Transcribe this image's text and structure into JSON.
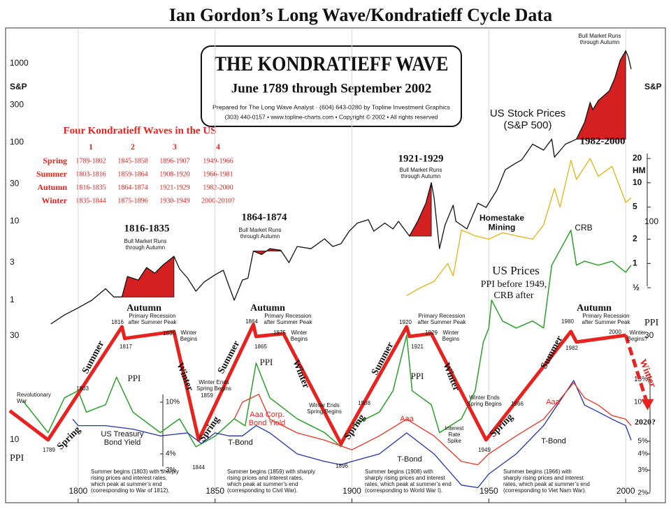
{
  "title": "Ian Gordon’s Long Wave/Kondratieff Cycle Data",
  "box": {
    "title": "THE KONDRATIEFF WAVE",
    "subtitle": "June 1789 through September 2002",
    "credit1": "Prepared for The Long Wave Analyst  ·  (604) 643-0280 by Topline Investment Graphics",
    "credit2": "(303) 440-0157 • www.topline-charts.com • Copyright © 2002 • All rights reserved"
  },
  "table": {
    "title": "Four Kondratieff Waves in the US",
    "columns": [
      1,
      2,
      3,
      4
    ],
    "rows": [
      {
        "season": "Spring",
        "cells": [
          "1789-1802",
          "1845-1858",
          "1896-1907",
          "1949-1966"
        ]
      },
      {
        "season": "Summer",
        "cells": [
          "1803-1816",
          "1859-1864",
          "1908-1920",
          "1966-1981"
        ]
      },
      {
        "season": "Autumn",
        "cells": [
          "1816-1835",
          "1864-1874",
          "1921-1929",
          "1982-2000"
        ]
      },
      {
        "season": "Winter",
        "cells": [
          "1835-1844",
          "1875-1896",
          "1930-1949",
          "2000-2010?"
        ]
      }
    ]
  },
  "chart_data": [
    {
      "type": "line",
      "log": true,
      "ylabel": "S&P",
      "xlim": [
        1774,
        2014
      ],
      "xticks": [
        1800,
        1850,
        1900,
        1950,
        2000
      ],
      "grid": true,
      "ylim": [
        0.5,
        2000
      ],
      "yticks": [
        1,
        3,
        10,
        30,
        100,
        300,
        1000
      ],
      "highlight_spans": [
        [
          1816,
          1835
        ],
        [
          1864,
          1874
        ],
        [
          1921,
          1929
        ],
        [
          1982,
          2000
        ]
      ],
      "highlight_color": "#d42020",
      "series": [
        {
          "color": "#111111",
          "x": [
            1790,
            1795,
            1800,
            1805,
            1810,
            1813,
            1816,
            1818,
            1822,
            1825,
            1828,
            1831,
            1835,
            1837,
            1840,
            1843,
            1846,
            1850,
            1853,
            1857,
            1860,
            1862,
            1864,
            1867,
            1870,
            1874,
            1877,
            1880,
            1885,
            1890,
            1893,
            1896,
            1899,
            1902,
            1906,
            1908,
            1912,
            1915,
            1917,
            1921,
            1924,
            1927,
            1929,
            1930,
            1932,
            1934,
            1937,
            1938,
            1942,
            1946,
            1949,
            1953,
            1956,
            1960,
            1962,
            1966,
            1970,
            1973,
            1974,
            1978,
            1982,
            1985,
            1987,
            1988,
            1990,
            1994,
            1996,
            1998,
            2000,
            2001,
            2002
          ],
          "values": [
            0.5,
            0.65,
            0.8,
            1.0,
            1.4,
            1.1,
            1.1,
            2.0,
            1.8,
            2.6,
            2.2,
            2.8,
            3.6,
            2.5,
            1.9,
            1.3,
            1.7,
            2.1,
            2.4,
            1.0,
            1.8,
            1.9,
            4.2,
            3.8,
            4.5,
            4.3,
            3.0,
            4.8,
            4.5,
            6.0,
            4.8,
            5.2,
            7.5,
            9.5,
            10.5,
            7.5,
            9.5,
            8,
            10,
            6.5,
            10,
            17,
            31,
            20,
            4.5,
            9,
            16,
            10,
            8,
            17,
            15,
            25,
            45,
            55,
            60,
            95,
            80,
            110,
            65,
            95,
            110,
            180,
            320,
            260,
            340,
            450,
            650,
            1100,
            1450,
            1200,
            850
          ]
        }
      ]
    },
    {
      "type": "line",
      "log": true,
      "y2label": "HM",
      "ylim": [
        0.35,
        23
      ],
      "y2ticks": [
        20,
        10,
        5,
        2,
        1,
        {
          "value": 0.5,
          "label": "½"
        }
      ],
      "series": [
        {
          "color": "#e3b410",
          "x": [
            1920,
            1925,
            1930,
            1935,
            1937,
            1940,
            1945,
            1950,
            1955,
            1960,
            1966,
            1970,
            1974,
            1976,
            1980,
            1982,
            1987,
            1990,
            1995,
            2000,
            2002
          ],
          "values": [
            0.4,
            0.5,
            0.6,
            1.0,
            0.7,
            2.6,
            2.2,
            2.0,
            2.4,
            2.2,
            2.0,
            3.0,
            8.5,
            5.0,
            19,
            11,
            20,
            12,
            16,
            5.7,
            6.5
          ]
        }
      ]
    },
    {
      "type": "line",
      "log": true,
      "ylabel": "PPI",
      "y2label": "PPI",
      "ylim": [
        5.15,
        114
      ],
      "yticks": [
        10,
        30
      ],
      "y2ticks": [
        30,
        100
      ],
      "series": [
        {
          "color": "#2aa02a",
          "width": 1.5,
          "x": [
            1780,
            1789,
            1795,
            1800,
            1803,
            1810,
            1814,
            1820,
            1830,
            1837,
            1843,
            1850,
            1857,
            1861,
            1865,
            1870,
            1880,
            1890,
            1896,
            1900,
            1910,
            1915,
            1920,
            1922,
            1929,
            1932,
            1940,
            1945,
            1948,
            1950,
            1951,
            1955,
            1960,
            1966,
            1970,
            1973,
            1980,
            1982,
            1985,
            1990,
            1995,
            2000,
            2002
          ],
          "values": [
            15,
            10.8,
            15.6,
            16.8,
            13.4,
            14.5,
            19.4,
            13.4,
            10.8,
            12.5,
            9.3,
            10.4,
            12.5,
            11.6,
            22.5,
            15.6,
            12.5,
            10.8,
            9.3,
            11.6,
            13.4,
            16.8,
            30.2,
            16.8,
            14.5,
            10.8,
            12.5,
            16.8,
            28.1,
            32.6,
            43.8,
            35.1,
            32.6,
            35.1,
            32.6,
            63.3,
            91.6,
            63.3,
            66,
            63.3,
            66,
            58.7,
            63.3
          ]
        },
        {
          "color": "#e8231f",
          "width": 5,
          "x": [
            1775,
            1789,
            1816,
            1817,
            1835,
            1844,
            1864,
            1865,
            1875,
            1896,
            1920,
            1921,
            1929,
            1949,
            1980,
            1982,
            2000
          ],
          "values": [
            13.6,
            10,
            33,
            29.2,
            31.4,
            10,
            33.8,
            29.8,
            30.7,
            9.6,
            33,
            29.8,
            30.7,
            10,
            31.4,
            28.1,
            30.2
          ]
        },
        {
          "color": "#e8231f",
          "width": 5,
          "dash": true,
          "x": [
            2000,
            2008
          ],
          "values": [
            30.2,
            14.5
          ]
        }
      ]
    },
    {
      "type": "line",
      "log": true,
      "ylim": [
        1.8,
        18
      ],
      "yticks": [
        {
          "value": 10,
          "label": "10%"
        },
        {
          "value": 4,
          "label": "4%"
        },
        {
          "value": 3,
          "label": "3%"
        }
      ],
      "y2ticks": [
        {
          "value": 15,
          "label": "15%"
        },
        {
          "value": 10,
          "label": "10%"
        },
        {
          "value": 5,
          "label": "5%"
        },
        {
          "value": 4,
          "label": "4%"
        },
        {
          "value": 3,
          "label": "3%"
        },
        {
          "value": 2,
          "label": "2%"
        }
      ],
      "series": [
        {
          "color": "#2233aa",
          "x": [
            1798,
            1800,
            1810,
            1820,
            1830,
            1840,
            1845,
            1850,
            1855,
            1860,
            1865,
            1870,
            1880,
            1890,
            1896,
            1900,
            1910,
            1920,
            1930,
            1940,
            1946,
            1950,
            1960,
            1970,
            1981,
            1985,
            1990,
            1995,
            2000,
            2002
          ],
          "values": [
            7.4,
            6.6,
            6.6,
            6.2,
            5.5,
            5.8,
            4.8,
            5.8,
            5.5,
            5.5,
            6.6,
            5.8,
            4.0,
            3.5,
            3.3,
            3.5,
            4.0,
            5.8,
            4.0,
            2.3,
            2.2,
            2.8,
            4.0,
            6.6,
            14.7,
            9.5,
            8.4,
            7.4,
            6.6,
            5.1
          ]
        },
        {
          "color": "#ee3322",
          "x": [
            1857,
            1860,
            1866,
            1870,
            1880,
            1890,
            1900,
            1910,
            1920,
            1930,
            1940,
            1946,
            1950,
            1960,
            1970,
            1981,
            1985,
            1990,
            1995,
            2000,
            2002
          ],
          "values": [
            7.4,
            10,
            11.5,
            7.4,
            5.8,
            5.1,
            4.3,
            5.5,
            7.4,
            5.5,
            3.5,
            3.3,
            4.0,
            5.5,
            7.4,
            14.1,
            10.8,
            9.5,
            7.9,
            7.4,
            6.6
          ]
        }
      ]
    }
  ],
  "annotations": [
    [
      "1816-1835"
    ],
    [
      "Bull Market Runs",
      "through Autumn"
    ],
    [
      "1864-1874"
    ],
    [
      "Bull Market Runs",
      "through Autumn"
    ],
    [
      "1921-1929"
    ],
    [
      "Bull Market Runs",
      "through Autumn"
    ],
    [
      "Bull Market Runs",
      "through Autumn"
    ],
    [
      "1982-2000"
    ],
    [
      "US Stock Prices",
      "(S&P 500)"
    ],
    [
      "Homestake",
      "Mining"
    ],
    [
      "CRB"
    ],
    [
      "US Prices"
    ],
    [
      "PPI before 1949,",
      "CRB after"
    ],
    [
      "Autumn"
    ],
    [
      "Autumn"
    ],
    [
      "Autumn"
    ],
    [
      "1816"
    ],
    [
      "Primary Recession",
      "after Summer Peak"
    ],
    [
      "1817"
    ],
    [
      "1835"
    ],
    [
      "Winter",
      "Begins"
    ],
    [
      "1864"
    ],
    [
      "Primary Recession",
      "after Summer Peak"
    ],
    [
      "1865"
    ],
    [
      "1875"
    ],
    [
      "Winter",
      "Begins"
    ],
    [
      "1920"
    ],
    [
      "Primary Recession",
      "after Summer Peak"
    ],
    [
      "1921"
    ],
    [
      "1929"
    ],
    [
      "Winter",
      "Begins"
    ],
    [
      "1980"
    ],
    [
      "Primary Recession",
      "after Summer Peak"
    ],
    [
      "1982"
    ],
    [
      "2000"
    ],
    [
      "Winter",
      "Begins?"
    ],
    [
      "Summer"
    ],
    [
      "Summer"
    ],
    [
      "Summer"
    ],
    [
      "Summer"
    ],
    [
      "Winter"
    ],
    [
      "Winter"
    ],
    [
      "Winter"
    ],
    [
      "Winter"
    ],
    [
      "Spring"
    ],
    [
      "Spring"
    ],
    [
      "Spring"
    ],
    [
      "Spring"
    ],
    [
      "PPI"
    ],
    [
      "PPI"
    ],
    [
      "PPI"
    ],
    [
      "1803"
    ],
    [
      "Revolutionary",
      "War"
    ],
    [
      "1789"
    ],
    [
      "1844"
    ],
    [
      "1859"
    ],
    [
      "Winter Ends",
      "Spring Begins"
    ],
    [
      "Winter Ends",
      "Spring Begins"
    ],
    [
      "1896"
    ],
    [
      "1908"
    ],
    [
      "Winter Ends",
      "Spring Begins"
    ],
    [
      "1949"
    ],
    [
      "1966"
    ],
    [
      "US Treasury",
      "Bond Yield"
    ],
    [
      "Aaa Corp.",
      "Bond Yield"
    ],
    [
      "T-Bond"
    ],
    [
      "Aaa"
    ],
    [
      "T-Bond"
    ],
    [
      "Interest",
      "Rate",
      "Spike"
    ],
    [
      "Aaa"
    ],
    [
      "T-Bond"
    ],
    [
      "2020?"
    ],
    [
      "Summer begins (1803) with sharply",
      "rising prices and interest rates,",
      "which peak at summer’s end",
      "(corresponding to War of 1812)."
    ],
    [
      "Summer begins (1859) with sharply",
      "rising prices and interest rates,",
      "which peak at summer’s end",
      "(corresponding to Civil War)."
    ],
    [
      "Summer begins (1908) with",
      "sharply rising prices and interest",
      "rates, which peak at summer’s end",
      "(corresponding to World War I)."
    ],
    [
      "Summer begins (1966) with",
      "sharply rising prices and interest",
      "rates, which peak at summer’s end",
      "(corresponding to Viet Nam War)."
    ]
  ]
}
